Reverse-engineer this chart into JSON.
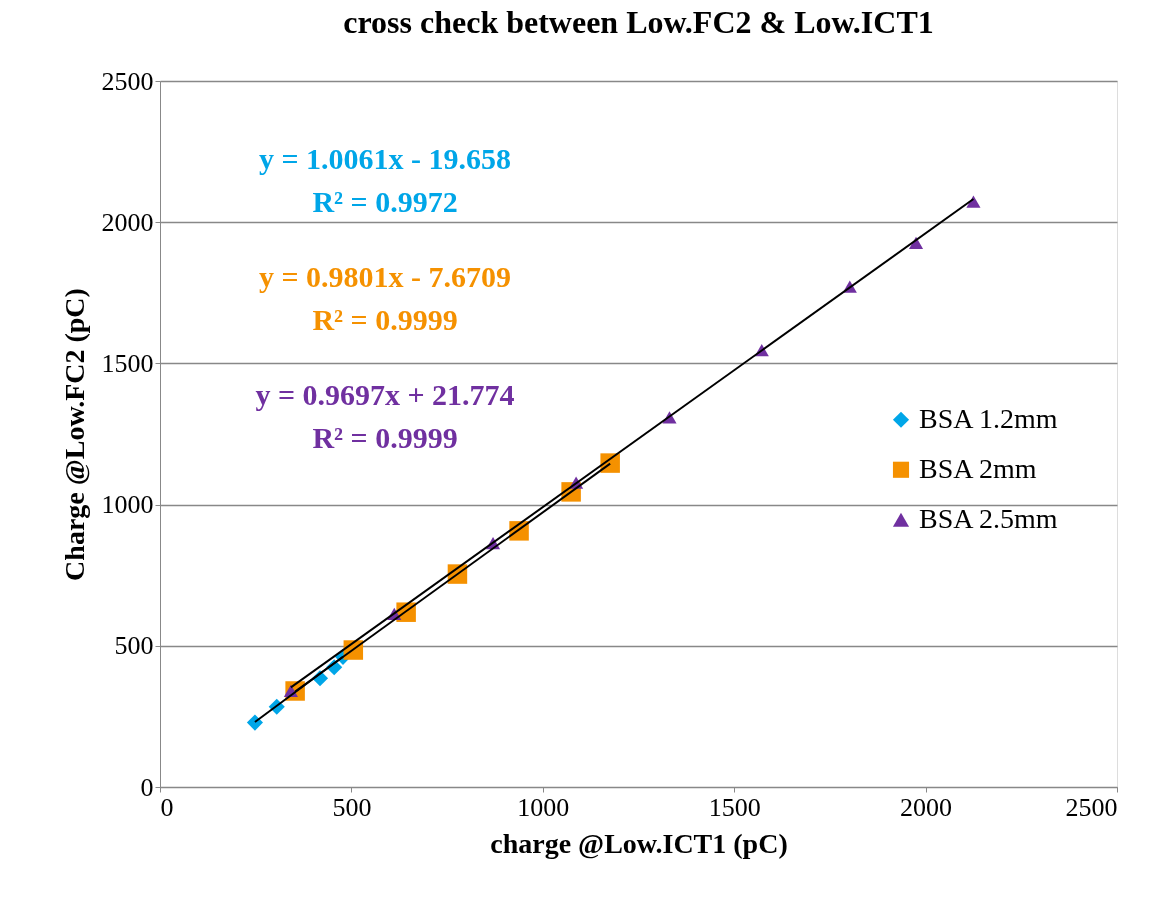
{
  "chart_data": {
    "type": "scatter",
    "title": "cross check between  Low.FC2 & Low.ICT1",
    "xlabel": "charge @Low.ICT1 (pC)",
    "ylabel": "Charge @Low.FC2 (pC)",
    "xlim": [
      0,
      2500
    ],
    "ylim": [
      0,
      2500
    ],
    "xticks": [
      0,
      500,
      1000,
      1500,
      2000,
      2500
    ],
    "yticks": [
      0,
      500,
      1000,
      1500,
      2000,
      2500
    ],
    "grid": "y",
    "legend": "right",
    "series": [
      {
        "name": "BSA 1.2mm",
        "color": "#00a6e8",
        "marker": "diamond",
        "x": [
          248,
          305,
          418,
          455,
          478
        ],
        "values": [
          228,
          284,
          385,
          424,
          461
        ]
      },
      {
        "name": "BSA 2mm",
        "color": "#f59100",
        "marker": "square",
        "x": [
          353,
          505,
          643,
          777,
          938,
          1074,
          1176
        ],
        "values": [
          340,
          485,
          619,
          754,
          907,
          1045,
          1147
        ]
      },
      {
        "name": "BSA 2.5mm",
        "color": "#7030a0",
        "marker": "triangle",
        "x": [
          342,
          612,
          870,
          1087,
          1331,
          1572,
          1802,
          1975,
          2125
        ],
        "values": [
          340,
          613,
          864,
          1078,
          1309,
          1547,
          1772,
          1927,
          2073
        ]
      },
      {
        "type": "line",
        "color": "#000000",
        "marker": "none",
        "x": [
          248,
          478
        ],
        "values": [
          230,
          461
        ]
      },
      {
        "type": "line",
        "color": "#000000",
        "marker": "none",
        "x": [
          353,
          1176
        ],
        "values": [
          338,
          1145
        ]
      },
      {
        "type": "line",
        "color": "#000000",
        "marker": "none",
        "x": [
          342,
          2125
        ],
        "values": [
          353,
          2082
        ]
      }
    ],
    "annotations": [
      "y = 1.0061x - 19.658",
      "R² = 0.9972",
      "y = 0.9801x - 7.6709",
      "R² = 0.9999",
      "y = 0.9697x + 21.774",
      "R² = 0.9999"
    ]
  }
}
